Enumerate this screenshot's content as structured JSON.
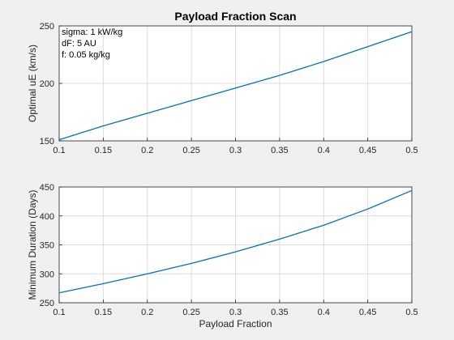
{
  "chart_data": [
    {
      "type": "line",
      "title": "Payload Fraction Scan",
      "xlabel": "",
      "ylabel": "Optimal uE (km/s)",
      "xlim": [
        0.1,
        0.5
      ],
      "ylim": [
        150,
        250
      ],
      "xticks": [
        0.1,
        0.15,
        0.2,
        0.25,
        0.3,
        0.35,
        0.4,
        0.45,
        0.5
      ],
      "xtick_labels": [
        "0.1",
        "0.15",
        "0.2",
        "0.25",
        "0.3",
        "0.35",
        "0.4",
        "0.45",
        "0.5"
      ],
      "yticks": [
        150,
        200,
        250
      ],
      "ytick_labels": [
        "150",
        "200",
        "250"
      ],
      "grid": true,
      "annotations": [
        "sigma: 1 kW/kg",
        "dF: 5 AU",
        "f: 0.05 kg/kg"
      ],
      "series": [
        {
          "color": "#0072bd",
          "x": [
            0.1,
            0.15,
            0.2,
            0.25,
            0.3,
            0.35,
            0.4,
            0.45,
            0.5
          ],
          "y": [
            151,
            163,
            174,
            185,
            196,
            207,
            219,
            232,
            245
          ]
        }
      ]
    },
    {
      "type": "line",
      "title": "",
      "xlabel": "Payload Fraction",
      "ylabel": "Minimum Duration (Days)",
      "xlim": [
        0.1,
        0.5
      ],
      "ylim": [
        250,
        450
      ],
      "xticks": [
        0.1,
        0.15,
        0.2,
        0.25,
        0.3,
        0.35,
        0.4,
        0.45,
        0.5
      ],
      "xtick_labels": [
        "0.1",
        "0.15",
        "0.2",
        "0.25",
        "0.3",
        "0.35",
        "0.4",
        "0.45",
        "0.5"
      ],
      "yticks": [
        250,
        300,
        350,
        400,
        450
      ],
      "ytick_labels": [
        "250",
        "300",
        "350",
        "400",
        "450"
      ],
      "grid": true,
      "annotations": [],
      "series": [
        {
          "color": "#0072bd",
          "x": [
            0.1,
            0.15,
            0.2,
            0.25,
            0.3,
            0.35,
            0.4,
            0.45,
            0.5
          ],
          "y": [
            267,
            283,
            300,
            318,
            338,
            360,
            384,
            412,
            444
          ]
        }
      ]
    }
  ]
}
